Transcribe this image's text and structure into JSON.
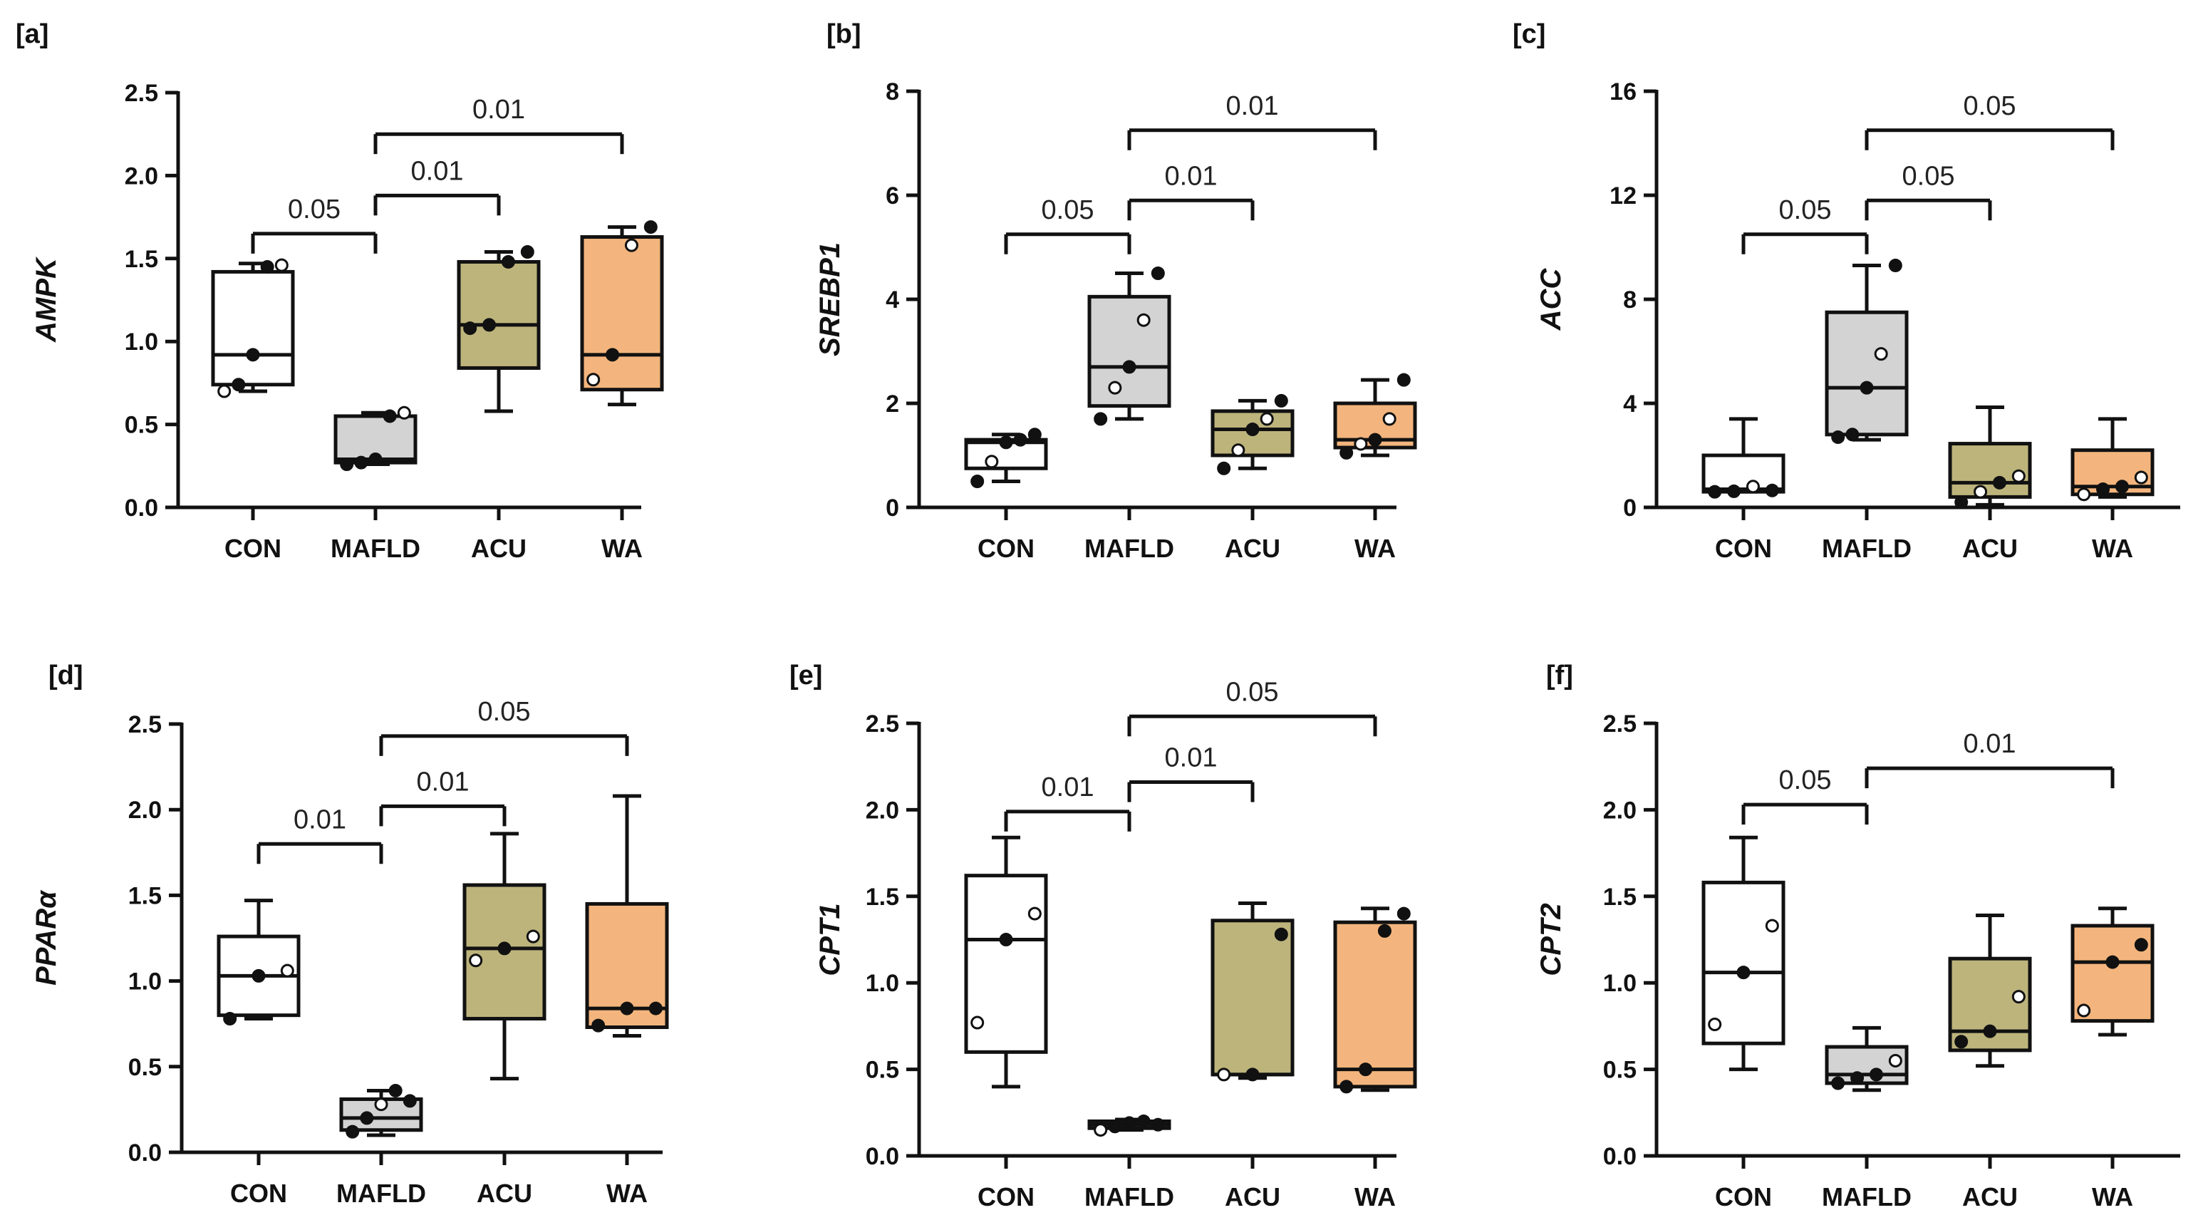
{
  "colors": {
    "CON": "#ffffff",
    "MAFLD": "#d3d3d3",
    "ACU": "#bdb47c",
    "WA": "#f3b57d"
  },
  "chart_data": [
    {
      "type": "box",
      "panel": "[a]",
      "ylabel": "AMPK",
      "categories": [
        "CON",
        "MAFLD",
        "ACU",
        "WA"
      ],
      "ylim": [
        0,
        2.5
      ],
      "yticks": [
        "0.0",
        "0.5",
        "1.0",
        "1.5",
        "2.0",
        "2.5"
      ],
      "boxes": [
        {
          "min": 0.7,
          "q1": 0.74,
          "median": 0.92,
          "q3": 1.42,
          "max": 1.47,
          "points": [
            0.7,
            0.74,
            0.92,
            1.45,
            1.46
          ],
          "open": [
            0,
            4
          ]
        },
        {
          "min": 0.26,
          "q1": 0.27,
          "median": 0.29,
          "q3": 0.55,
          "max": 0.57,
          "points": [
            0.26,
            0.27,
            0.29,
            0.55,
            0.57
          ],
          "open": [
            4
          ]
        },
        {
          "min": 0.58,
          "q1": 0.84,
          "median": 1.1,
          "q3": 1.48,
          "max": 1.54,
          "points": [
            1.08,
            1.1,
            1.48,
            1.54
          ],
          "open": []
        },
        {
          "min": 0.62,
          "q1": 0.71,
          "median": 0.92,
          "q3": 1.63,
          "max": 1.69,
          "points": [
            0.77,
            0.92,
            1.58,
            1.69
          ],
          "open": [
            0,
            2
          ]
        }
      ],
      "comparisons": [
        {
          "from": "CON",
          "to": "MAFLD",
          "y": 1.65,
          "label": "0.05"
        },
        {
          "from": "MAFLD",
          "to": "ACU",
          "y": 1.88,
          "label": "0.01"
        },
        {
          "from": "MAFLD",
          "to": "WA",
          "y": 2.25,
          "label": "0.01"
        }
      ]
    },
    {
      "type": "box",
      "panel": "[b]",
      "ylabel": "SREBP1",
      "categories": [
        "CON",
        "MAFLD",
        "ACU",
        "WA"
      ],
      "ylim": [
        0,
        8
      ],
      "yticks": [
        "0",
        "2",
        "4",
        "6",
        "8"
      ],
      "boxes": [
        {
          "min": 0.5,
          "q1": 0.75,
          "median": 1.25,
          "q3": 1.3,
          "max": 1.4,
          "points": [
            0.5,
            0.88,
            1.25,
            1.3,
            1.4
          ],
          "open": [
            1
          ]
        },
        {
          "min": 1.7,
          "q1": 1.95,
          "median": 2.7,
          "q3": 4.05,
          "max": 4.5,
          "points": [
            1.7,
            2.3,
            2.7,
            3.6,
            4.5
          ],
          "open": [
            1,
            3
          ]
        },
        {
          "min": 0.75,
          "q1": 1.0,
          "median": 1.5,
          "q3": 1.85,
          "max": 2.05,
          "points": [
            0.75,
            1.1,
            1.5,
            1.7,
            2.05
          ],
          "open": [
            1,
            3
          ]
        },
        {
          "min": 1.0,
          "q1": 1.15,
          "median": 1.3,
          "q3": 2.0,
          "max": 2.45,
          "points": [
            1.05,
            1.22,
            1.3,
            1.7,
            2.45
          ],
          "open": [
            1,
            3
          ]
        }
      ],
      "comparisons": [
        {
          "from": "CON",
          "to": "MAFLD",
          "y": 5.25,
          "label": "0.05"
        },
        {
          "from": "MAFLD",
          "to": "ACU",
          "y": 5.9,
          "label": "0.01"
        },
        {
          "from": "MAFLD",
          "to": "WA",
          "y": 7.25,
          "label": "0.01"
        }
      ]
    },
    {
      "type": "box",
      "panel": "[c]",
      "ylabel": "ACC",
      "categories": [
        "CON",
        "MAFLD",
        "ACU",
        "WA"
      ],
      "ylim": [
        0,
        16
      ],
      "yticks": [
        "0",
        "4",
        "8",
        "12",
        "16"
      ],
      "boxes": [
        {
          "min": 0.6,
          "q1": 0.6,
          "median": 0.7,
          "q3": 2.0,
          "max": 3.4,
          "points": [
            0.6,
            0.62,
            0.8,
            0.65
          ],
          "open": [
            2
          ]
        },
        {
          "min": 2.6,
          "q1": 2.8,
          "median": 4.6,
          "q3": 7.5,
          "max": 9.3,
          "points": [
            2.7,
            2.8,
            4.6,
            5.9,
            9.3
          ],
          "open": [
            3
          ]
        },
        {
          "min": 0.1,
          "q1": 0.4,
          "median": 0.95,
          "q3": 2.45,
          "max": 3.85,
          "points": [
            0.2,
            0.6,
            0.95,
            1.2
          ],
          "open": [
            1,
            3
          ]
        },
        {
          "min": 0.4,
          "q1": 0.5,
          "median": 0.8,
          "q3": 2.2,
          "max": 3.4,
          "points": [
            0.5,
            0.7,
            0.8,
            1.15
          ],
          "open": [
            0,
            3
          ]
        }
      ],
      "comparisons": [
        {
          "from": "CON",
          "to": "MAFLD",
          "y": 10.5,
          "label": "0.05"
        },
        {
          "from": "MAFLD",
          "to": "ACU",
          "y": 11.8,
          "label": "0.05"
        },
        {
          "from": "MAFLD",
          "to": "WA",
          "y": 14.5,
          "label": "0.05"
        }
      ]
    },
    {
      "type": "box",
      "panel": "[d]",
      "ylabel": "PPARα",
      "categories": [
        "CON",
        "MAFLD",
        "ACU",
        "WA"
      ],
      "ylim": [
        0,
        2.5
      ],
      "yticks": [
        "0.0",
        "0.5",
        "1.0",
        "1.5",
        "2.0",
        "2.5"
      ],
      "boxes": [
        {
          "min": 0.78,
          "q1": 0.8,
          "median": 1.03,
          "q3": 1.26,
          "max": 1.47,
          "points": [
            0.78,
            1.03,
            1.06
          ],
          "open": [
            2
          ]
        },
        {
          "min": 0.1,
          "q1": 0.13,
          "median": 0.2,
          "q3": 0.31,
          "max": 0.36,
          "points": [
            0.12,
            0.2,
            0.28,
            0.36,
            0.3
          ],
          "open": [
            2
          ]
        },
        {
          "min": 0.43,
          "q1": 0.78,
          "median": 1.19,
          "q3": 1.56,
          "max": 1.86,
          "points": [
            1.12,
            1.19,
            1.26
          ],
          "open": [
            0,
            2
          ]
        },
        {
          "min": 0.68,
          "q1": 0.73,
          "median": 0.84,
          "q3": 1.45,
          "max": 2.08,
          "points": [
            0.74,
            0.84,
            0.84
          ],
          "open": []
        }
      ],
      "comparisons": [
        {
          "from": "CON",
          "to": "MAFLD",
          "y": 1.8,
          "label": "0.01"
        },
        {
          "from": "MAFLD",
          "to": "ACU",
          "y": 2.02,
          "label": "0.01"
        },
        {
          "from": "MAFLD",
          "to": "WA",
          "y": 2.43,
          "label": "0.05"
        }
      ]
    },
    {
      "type": "box",
      "panel": "[e]",
      "ylabel": "CPT1",
      "categories": [
        "CON",
        "MAFLD",
        "ACU",
        "WA"
      ],
      "ylim": [
        0,
        2.5
      ],
      "yticks": [
        "0.0",
        "0.5",
        "1.0",
        "1.5",
        "2.0",
        "2.5"
      ],
      "boxes": [
        {
          "min": 0.4,
          "q1": 0.6,
          "median": 1.25,
          "q3": 1.62,
          "max": 1.84,
          "points": [
            0.77,
            1.25,
            1.4
          ],
          "open": [
            0,
            2
          ]
        },
        {
          "min": 0.15,
          "q1": 0.16,
          "median": 0.18,
          "q3": 0.2,
          "max": 0.21,
          "points": [
            0.15,
            0.17,
            0.19,
            0.2,
            0.18
          ],
          "open": [
            0
          ]
        },
        {
          "min": 0.45,
          "q1": 0.47,
          "median": 0.47,
          "q3": 1.36,
          "max": 1.46,
          "points": [
            0.47,
            0.47,
            1.28
          ],
          "open": [
            0
          ]
        },
        {
          "min": 0.38,
          "q1": 0.4,
          "median": 0.5,
          "q3": 1.35,
          "max": 1.43,
          "points": [
            0.4,
            0.5,
            1.3,
            1.4
          ],
          "open": []
        }
      ],
      "comparisons": [
        {
          "from": "CON",
          "to": "MAFLD",
          "y": 1.99,
          "label": "0.01"
        },
        {
          "from": "MAFLD",
          "to": "ACU",
          "y": 2.16,
          "label": "0.01"
        },
        {
          "from": "MAFLD",
          "to": "WA",
          "y": 2.54,
          "label": "0.05"
        }
      ]
    },
    {
      "type": "box",
      "panel": "[f]",
      "ylabel": "CPT2",
      "categories": [
        "CON",
        "MAFLD",
        "ACU",
        "WA"
      ],
      "ylim": [
        0,
        2.5
      ],
      "yticks": [
        "0.0",
        "0.5",
        "1.0",
        "1.5",
        "2.0",
        "2.5"
      ],
      "boxes": [
        {
          "min": 0.5,
          "q1": 0.65,
          "median": 1.06,
          "q3": 1.58,
          "max": 1.84,
          "points": [
            0.76,
            1.06,
            1.33
          ],
          "open": [
            0,
            2
          ]
        },
        {
          "min": 0.38,
          "q1": 0.42,
          "median": 0.47,
          "q3": 0.63,
          "max": 0.74,
          "points": [
            0.42,
            0.45,
            0.47,
            0.55
          ],
          "open": [
            3
          ]
        },
        {
          "min": 0.52,
          "q1": 0.61,
          "median": 0.72,
          "q3": 1.14,
          "max": 1.39,
          "points": [
            0.66,
            0.72,
            0.92
          ],
          "open": [
            2
          ]
        },
        {
          "min": 0.7,
          "q1": 0.78,
          "median": 1.12,
          "q3": 1.33,
          "max": 1.43,
          "points": [
            0.84,
            1.12,
            1.22
          ],
          "open": [
            0
          ]
        }
      ],
      "comparisons": [
        {
          "from": "CON",
          "to": "MAFLD",
          "y": 2.03,
          "label": "0.05"
        },
        {
          "from": "MAFLD",
          "to": "WA",
          "y": 2.24,
          "label": "0.01"
        }
      ]
    }
  ]
}
